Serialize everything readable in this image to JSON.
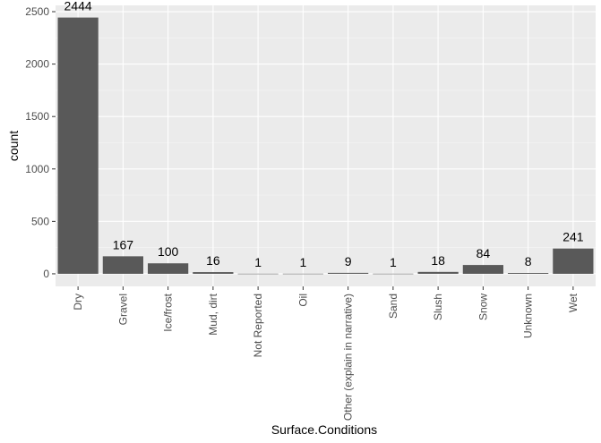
{
  "chart_data": {
    "type": "bar",
    "categories": [
      "Dry",
      "Gravel",
      "Ice/frost",
      "Mud, dirt",
      "Not Reported",
      "Oil",
      "Other (explain in narrative)",
      "Sand",
      "Slush",
      "Snow",
      "Unknown",
      "Wet"
    ],
    "values": [
      2444,
      167,
      100,
      16,
      1,
      1,
      9,
      1,
      18,
      84,
      8,
      241
    ],
    "value_labels": [
      "2444",
      "167",
      "100",
      "16",
      "1",
      "1",
      "9",
      "1",
      "18",
      "84",
      "8",
      "241"
    ],
    "xlabel": "Surface.Conditions",
    "ylabel": "count",
    "ylim": [
      -120,
      2560
    ],
    "yticks": [
      0,
      500,
      1000,
      1500,
      2000,
      2500
    ],
    "x_tick_rotation": 90,
    "grid": true,
    "colors": {
      "panel_background": "#ebebeb",
      "grid_major": "#ffffff",
      "grid_minor": "#f5f5f5",
      "bar_fill": "#595959",
      "tick": "#333333"
    }
  }
}
